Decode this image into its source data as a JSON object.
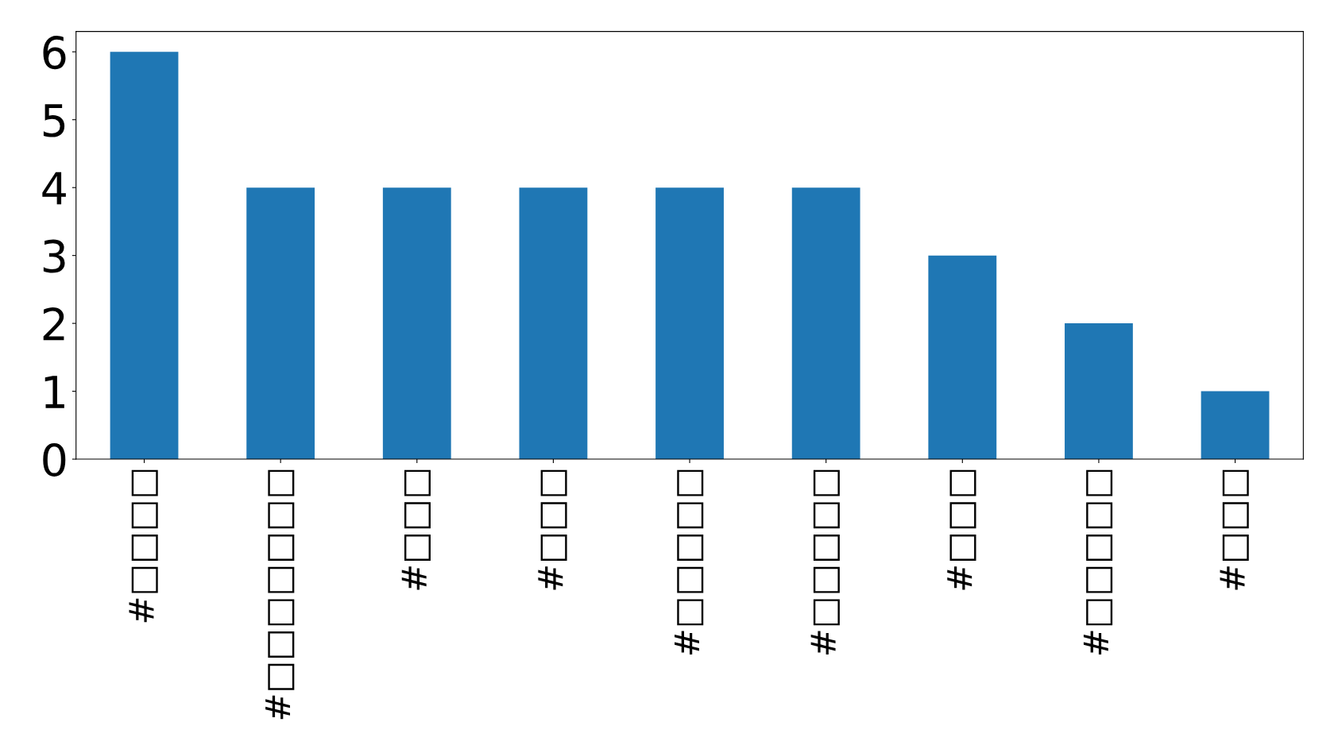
{
  "chart_data": {
    "type": "bar",
    "categories": [
      "#□□□□",
      "#□□□□□□□",
      "#□□□",
      "#□□□",
      "#□□□□□",
      "#□□□□□",
      "#□□□",
      "#□□□□□",
      "#□□□"
    ],
    "values": [
      6,
      4,
      4,
      4,
      4,
      4,
      3,
      2,
      1
    ],
    "color": "#1f77b4",
    "ylim": [
      0,
      6.3
    ],
    "yticks": [
      0,
      1,
      2,
      3,
      4,
      5,
      6
    ],
    "grid": false,
    "legend": false
  }
}
